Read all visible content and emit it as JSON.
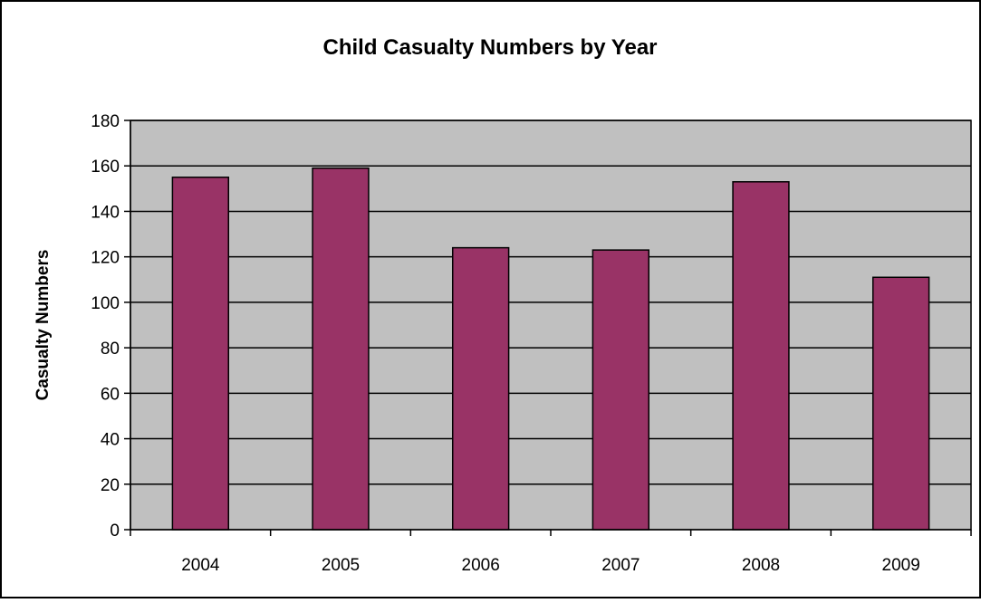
{
  "chart_data": {
    "type": "bar",
    "title": "Child Casualty Numbers by Year",
    "xlabel": "",
    "ylabel": "Casualty Numbers",
    "categories": [
      "2004",
      "2005",
      "2006",
      "2007",
      "2008",
      "2009"
    ],
    "values": [
      155,
      159,
      124,
      123,
      153,
      111
    ],
    "ylim": [
      0,
      180
    ],
    "yticks": [
      "0",
      "20",
      "40",
      "60",
      "80",
      "100",
      "120",
      "140",
      "160",
      "180"
    ],
    "grid": "horizontal",
    "legend": "none",
    "colors": {
      "bar": "#993366",
      "plot_background": "#c0c0c0",
      "gridline": "#000000",
      "outline": "#000000"
    }
  }
}
